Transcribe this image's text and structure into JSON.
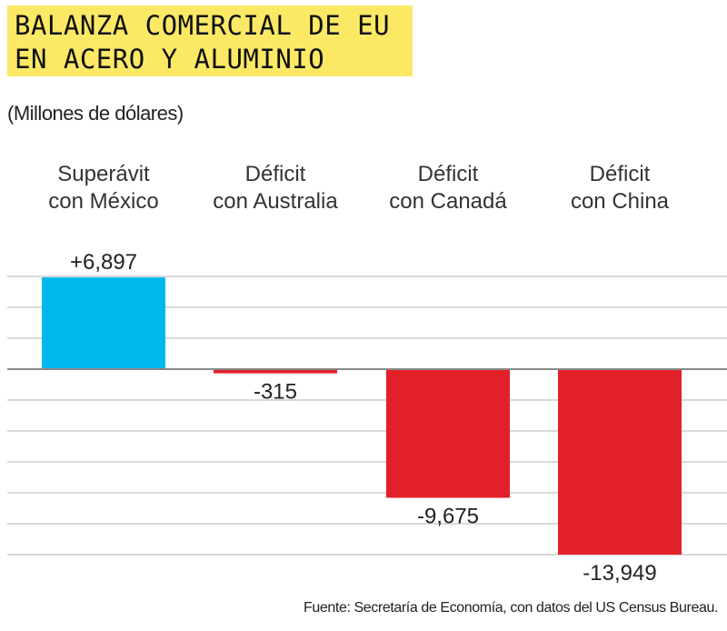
{
  "chart_data": {
    "type": "bar",
    "title": [
      "BALANZA COMERCIAL DE EU",
      "EN ACERO Y ALUMINIO"
    ],
    "subtitle": "(Millones de dólares)",
    "categories": [
      [
        "Superávit",
        "con México"
      ],
      [
        "Déficit",
        "con Australia"
      ],
      [
        "Déficit",
        "con Canadá"
      ],
      [
        "Déficit",
        "con China"
      ]
    ],
    "values": [
      6897,
      -315,
      -9675,
      -13949
    ],
    "labels": [
      "+6,897",
      "-315",
      "-9,675",
      "-13,949"
    ],
    "colors": [
      "#00b8ee",
      "#e2202a",
      "#e2202a",
      "#e2202a"
    ],
    "ylim": [
      -13949,
      6897
    ],
    "grid": true,
    "axes_ticks_shown": false,
    "source": "Fuente: Secretaría de Economía, con datos del US Census Bureau."
  },
  "colors": {
    "title_bg": "#fbe966",
    "grid": "#d9d9d9",
    "zero_line": "#8a8a8a"
  }
}
